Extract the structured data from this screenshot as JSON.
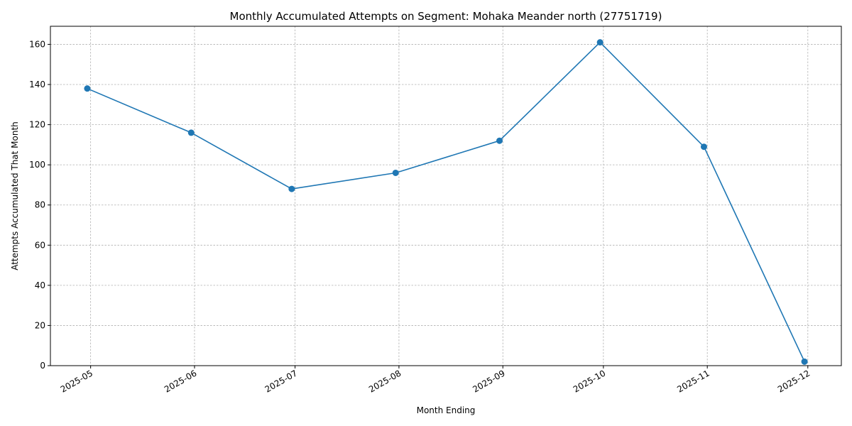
{
  "chart_data": {
    "type": "line",
    "title": "Monthly Accumulated Attempts on Segment: Mohaka Meander north (27751719)",
    "xlabel": "Month Ending",
    "ylabel": "Attempts Accumulated That Month",
    "x_axis": {
      "kind": "date",
      "range": [
        "2025-04-19",
        "2025-12-11"
      ],
      "ticks": [
        {
          "date": "2025-05-01",
          "label": "2025-05"
        },
        {
          "date": "2025-06-01",
          "label": "2025-06"
        },
        {
          "date": "2025-07-01",
          "label": "2025-07"
        },
        {
          "date": "2025-08-01",
          "label": "2025-08"
        },
        {
          "date": "2025-09-01",
          "label": "2025-09"
        },
        {
          "date": "2025-10-01",
          "label": "2025-10"
        },
        {
          "date": "2025-11-01",
          "label": "2025-11"
        },
        {
          "date": "2025-12-01",
          "label": "2025-12"
        }
      ]
    },
    "y_axis": {
      "range": [
        0,
        169
      ],
      "ticks": [
        0,
        20,
        40,
        60,
        80,
        100,
        120,
        140,
        160
      ]
    },
    "grid": true,
    "series": [
      {
        "color": "#1f77b4",
        "points": [
          {
            "x": "2025-04-30",
            "y": 138
          },
          {
            "x": "2025-05-31",
            "y": 116
          },
          {
            "x": "2025-06-30",
            "y": 88
          },
          {
            "x": "2025-07-31",
            "y": 96
          },
          {
            "x": "2025-08-31",
            "y": 112
          },
          {
            "x": "2025-09-30",
            "y": 161
          },
          {
            "x": "2025-10-31",
            "y": 109
          },
          {
            "x": "2025-11-30",
            "y": 2
          }
        ]
      }
    ]
  }
}
